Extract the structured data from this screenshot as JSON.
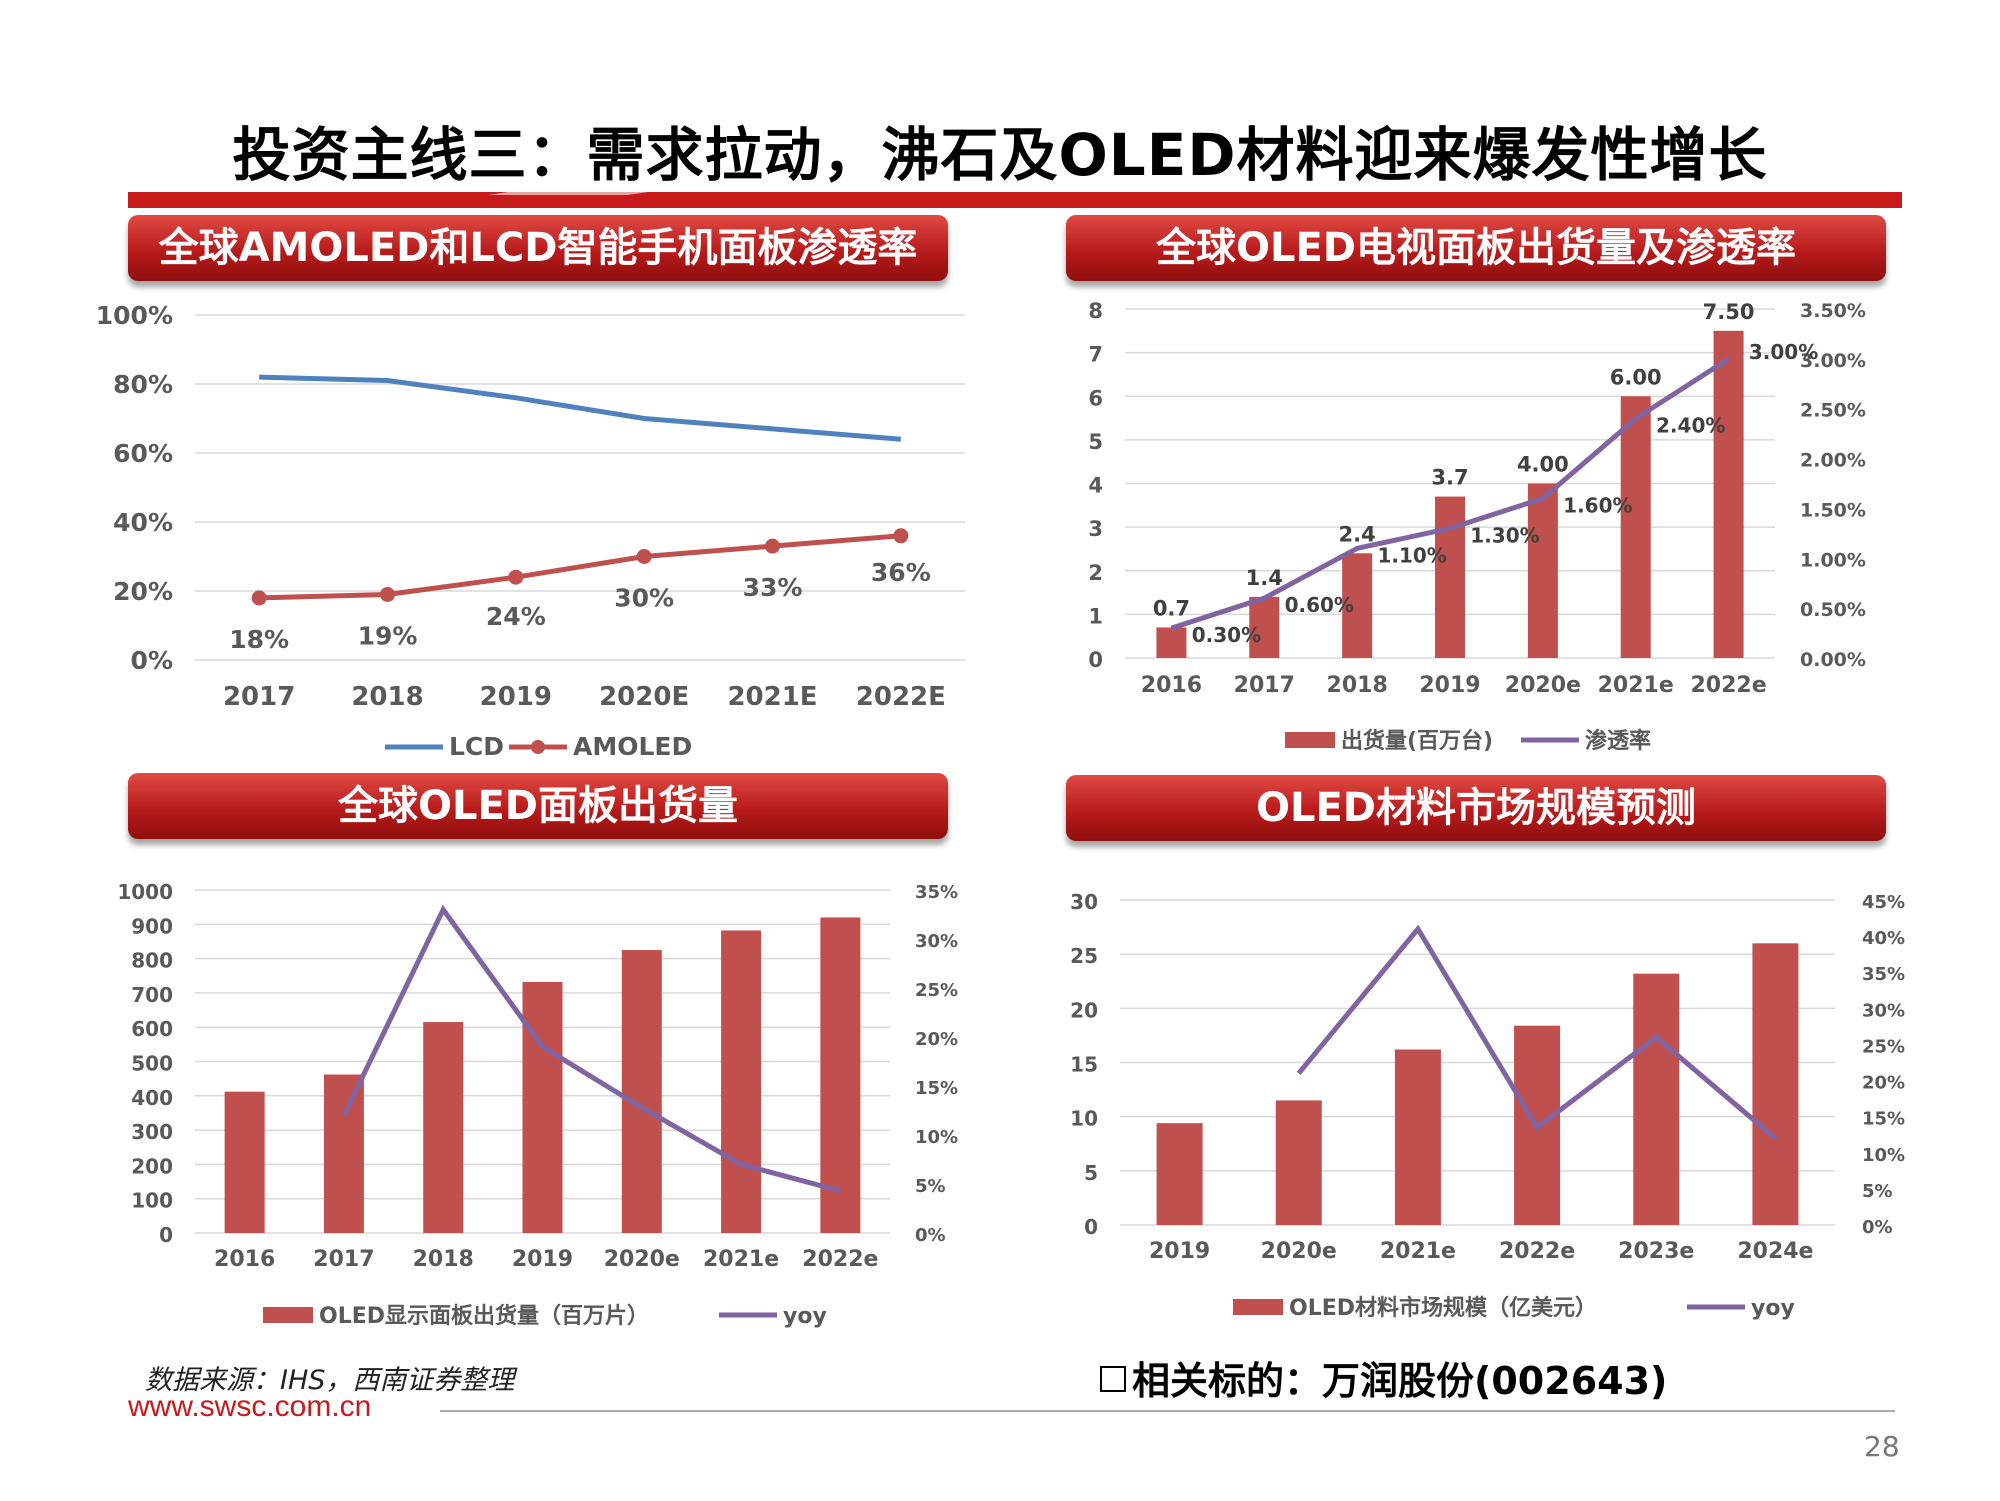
{
  "page": {
    "title": "投资主线三：需求拉动，沸石及OLED材料迎来爆发性增长",
    "source": "数据来源：IHS，西南证券整理",
    "url": "www.swsc.com.cn",
    "related": "相关标的：万润股份(002643)",
    "page_number": "28",
    "colors": {
      "brand_red": "#c8191b",
      "bar_red": "#c0504d",
      "line_blue": "#4f81bd",
      "line_purple": "#8064a2"
    }
  },
  "chart_data": [
    {
      "type": "line",
      "title": "全球AMOLED和LCD智能手机面板渗透率",
      "categories": [
        "2017",
        "2018",
        "2019",
        "2020E",
        "2021E",
        "2022E"
      ],
      "ylim": [
        0,
        100
      ],
      "y_ticks": [
        "0%",
        "20%",
        "40%",
        "60%",
        "80%",
        "100%"
      ],
      "series": [
        {
          "name": "LCD",
          "values": [
            82,
            81,
            76,
            70,
            67,
            64
          ],
          "color": "#4f81bd"
        },
        {
          "name": "AMOLED",
          "values": [
            18,
            19,
            24,
            30,
            33,
            36
          ],
          "labels": [
            "18%",
            "19%",
            "24%",
            "30%",
            "33%",
            "36%"
          ],
          "color": "#c0504d"
        }
      ],
      "legend": "bottom"
    },
    {
      "type": "bar+line",
      "title": "全球OLED电视面板出货量及渗透率",
      "categories": [
        "2016",
        "2017",
        "2018",
        "2019",
        "2020e",
        "2021e",
        "2022e"
      ],
      "ylim": [
        0,
        8
      ],
      "y_ticks": [
        "0",
        "1",
        "2",
        "3",
        "4",
        "5",
        "6",
        "7",
        "8"
      ],
      "y2lim": [
        0,
        3.5
      ],
      "y2_ticks": [
        "0.00%",
        "0.50%",
        "1.00%",
        "1.50%",
        "2.00%",
        "2.50%",
        "3.00%",
        "3.50%"
      ],
      "series": [
        {
          "name": "出货量(百万台)",
          "type": "bar",
          "values": [
            0.7,
            1.4,
            2.4,
            3.7,
            4.0,
            6.0,
            7.5
          ],
          "labels": [
            "0.7",
            "1.4",
            "2.4",
            "3.7",
            "4.00",
            "6.00",
            "7.50"
          ],
          "color": "#c0504d"
        },
        {
          "name": "渗透率",
          "type": "line",
          "axis": "y2",
          "values": [
            0.3,
            0.6,
            1.1,
            1.3,
            1.6,
            2.4,
            3.0
          ],
          "labels": [
            "0.30%",
            "0.60%",
            "1.10%",
            "1.30%",
            "1.60%",
            "2.40%",
            "3.00%"
          ],
          "color": "#8064a2"
        }
      ],
      "legend": "bottom"
    },
    {
      "type": "bar+line",
      "title": "全球OLED面板出货量",
      "categories": [
        "2016",
        "2017",
        "2018",
        "2019",
        "2020e",
        "2021e",
        "2022e"
      ],
      "ylim": [
        0,
        1000
      ],
      "y_ticks": [
        "0",
        "100",
        "200",
        "300",
        "400",
        "500",
        "600",
        "700",
        "800",
        "900",
        "1000"
      ],
      "y2lim": [
        0,
        35
      ],
      "y2_ticks": [
        "0%",
        "5%",
        "10%",
        "15%",
        "20%",
        "25%",
        "30%",
        "35%"
      ],
      "series": [
        {
          "name": "OLED显示面板出货量（百万片）",
          "type": "bar",
          "values": [
            412,
            462,
            615,
            732,
            825,
            882,
            920
          ],
          "color": "#c0504d"
        },
        {
          "name": "yoy",
          "type": "line",
          "axis": "y2",
          "values": [
            null,
            12,
            33,
            19,
            12.8,
            7,
            4.3
          ],
          "color": "#8064a2"
        }
      ],
      "legend": "bottom"
    },
    {
      "type": "bar+line",
      "title": "OLED材料市场规模预测",
      "categories": [
        "2019",
        "2020e",
        "2021e",
        "2022e",
        "2023e",
        "2024e"
      ],
      "ylim": [
        0,
        30
      ],
      "y_ticks": [
        "0",
        "5",
        "10",
        "15",
        "20",
        "25",
        "30"
      ],
      "y2lim": [
        0,
        45
      ],
      "y2_ticks": [
        "0%",
        "5%",
        "10%",
        "15%",
        "20%",
        "25%",
        "30%",
        "35%",
        "40%",
        "45%"
      ],
      "series": [
        {
          "name": "OLED材料市场规模（亿美元）",
          "type": "bar",
          "values": [
            9.4,
            11.5,
            16.2,
            18.4,
            23.2,
            26.0
          ],
          "color": "#c0504d"
        },
        {
          "name": "yoy",
          "type": "line",
          "axis": "y2",
          "values": [
            null,
            21,
            41,
            13.5,
            26,
            12
          ],
          "color": "#8064a2"
        }
      ],
      "legend": "bottom"
    }
  ]
}
